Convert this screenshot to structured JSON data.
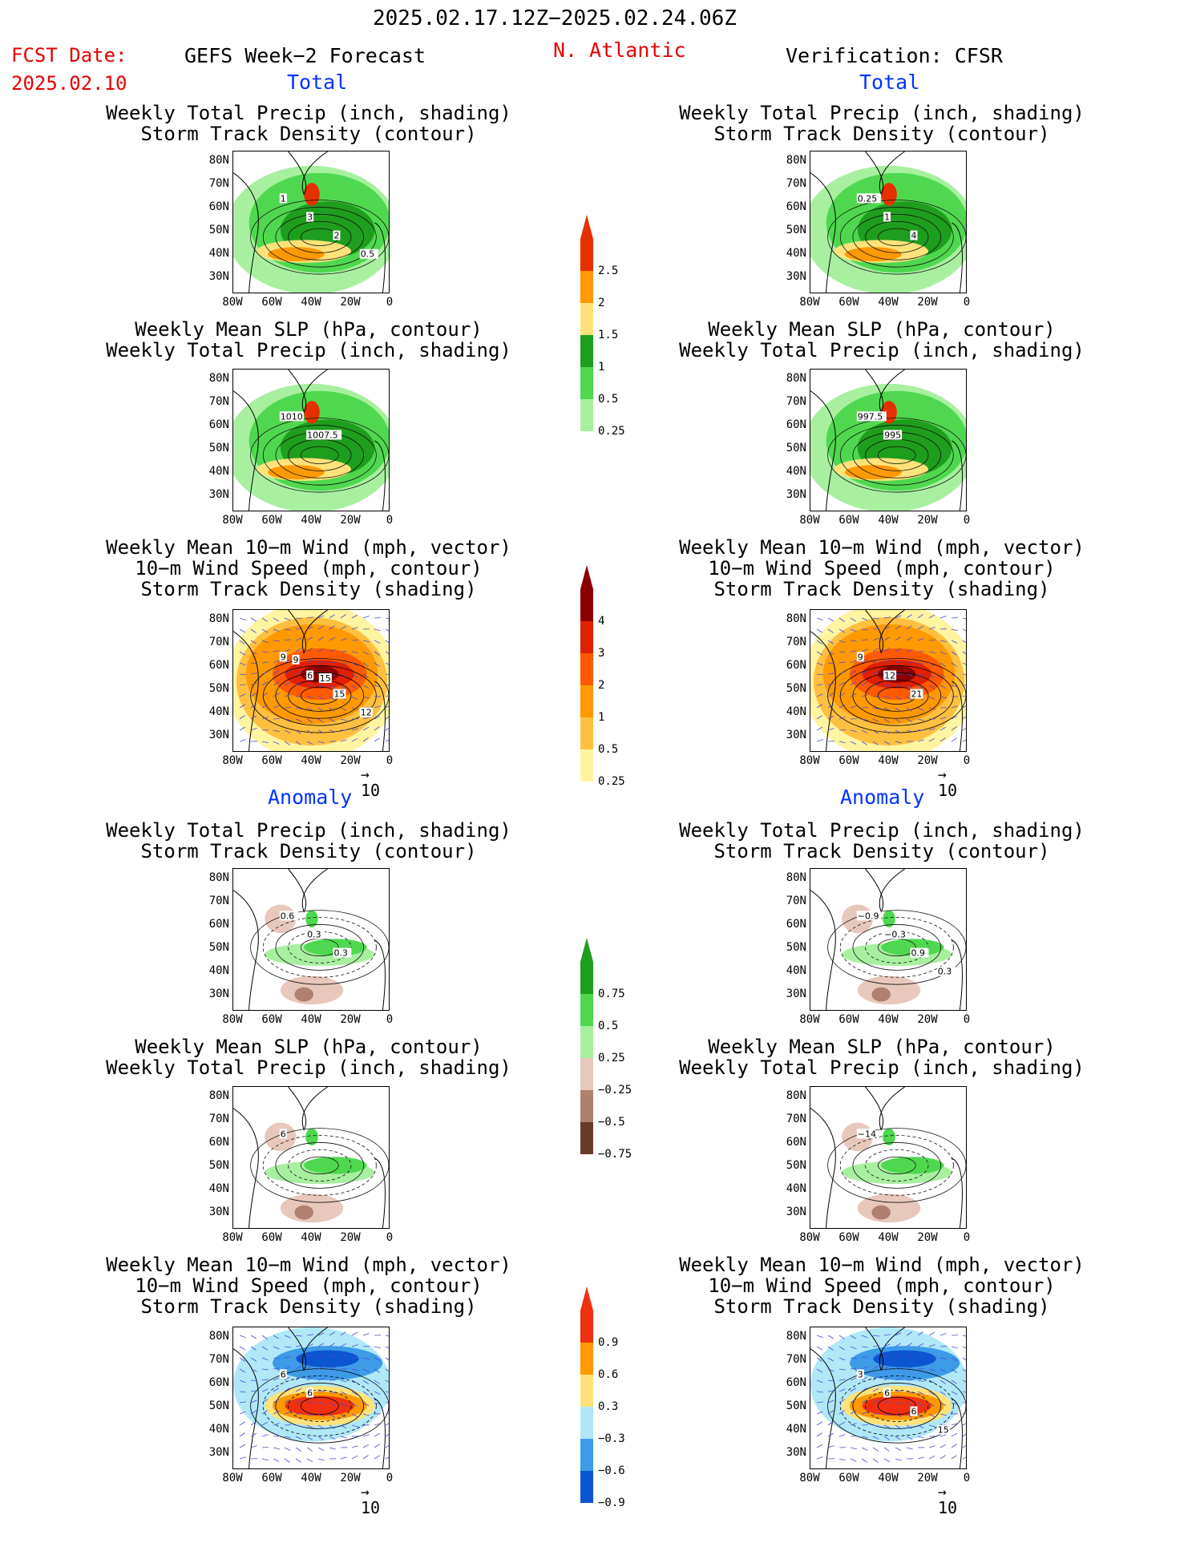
{
  "header": {
    "date_range": "2025.02.17.12Z−2025.02.24.06Z",
    "fcst_label": "FCST Date:",
    "fcst_date": "2025.02.10",
    "left_title": "GEFS Week−2 Forecast",
    "region": "N. Atlantic",
    "right_title": "Verification: CFSR"
  },
  "sections": {
    "total": "Total",
    "anomaly": "Anomaly"
  },
  "panel_titles": {
    "precip_track": [
      "Weekly Total Precip (inch, shading)",
      "Storm Track Density (contour)"
    ],
    "slp_precip": [
      "Weekly Mean SLP (hPa, contour)",
      "Weekly Total Precip (inch, shading)"
    ],
    "wind_track": [
      "Weekly Mean 10−m Wind (mph, vector)",
      "10−m Wind Speed (mph, contour)",
      "Storm Track Density (shading)"
    ]
  },
  "axes": {
    "lat": [
      "80N",
      "70N",
      "60N",
      "50N",
      "40N",
      "30N"
    ],
    "lon": [
      "80W",
      "60W",
      "40W",
      "20W",
      "0"
    ]
  },
  "vector_ref": "10",
  "colorbars": {
    "precip_total": {
      "labels": [
        "2.5",
        "2",
        "1.5",
        "1",
        "0.5",
        "0.25"
      ],
      "colors": [
        "#e63000",
        "#ff9900",
        "#ffe27a",
        "#1e9e1e",
        "#4fd84f",
        "#a8f0a0"
      ]
    },
    "track_total": {
      "labels": [
        "4",
        "3",
        "2",
        "1",
        "0.5",
        "0.25"
      ],
      "colors": [
        "#8b0000",
        "#e02000",
        "#ff5a00",
        "#ff9900",
        "#ffc040",
        "#fff4a0"
      ]
    },
    "precip_anom": {
      "labels": [
        "0.75",
        "0.5",
        "0.25",
        "−0.25",
        "−0.5",
        "−0.75"
      ],
      "colors": [
        "#1e9e1e",
        "#4fd84f",
        "#a8f0a0",
        "#e8c8bc",
        "#b08070",
        "#6a3a2a"
      ]
    },
    "track_anom": {
      "labels": [
        "0.9",
        "0.6",
        "0.3",
        "−0.3",
        "−0.6",
        "−0.9"
      ],
      "colors": [
        "#f03010",
        "#ff9900",
        "#ffe27a",
        "#b0e8f8",
        "#3d9be8",
        "#0a55d0"
      ]
    }
  },
  "contour_labels": {
    "gefs_precip_total": [
      "1",
      "3",
      "2",
      "0.5"
    ],
    "cfsr_precip_total": [
      "0.25",
      "1",
      "4"
    ],
    "gefs_slp_total": [
      "1010",
      "1007.5"
    ],
    "cfsr_slp_total": [
      "997.5",
      "995"
    ],
    "gefs_wind_total": [
      "9",
      "6",
      "15",
      "12",
      "9",
      "15"
    ],
    "cfsr_wind_total": [
      "9",
      "12",
      "21"
    ],
    "gefs_precip_anom": [
      "0.6",
      "0.3",
      "0.3"
    ],
    "cfsr_precip_anom": [
      "−0.9",
      "−0.3",
      "0.9",
      "0.3"
    ],
    "gefs_slp_anom": [
      "6"
    ],
    "cfsr_slp_anom": [
      "−14"
    ],
    "gefs_wind_anom": [
      "6",
      "6"
    ],
    "cfsr_wind_anom": [
      "3",
      "6",
      "6",
      "15"
    ]
  }
}
